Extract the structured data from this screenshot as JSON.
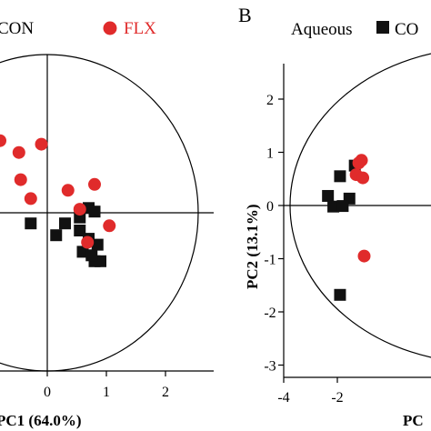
{
  "panels": [
    {
      "panel_label": "",
      "legend": [
        {
          "label": "CON",
          "marker": "square",
          "color": "#111111"
        },
        {
          "label": "FLX",
          "marker": "circle",
          "color": "#e02b2b"
        }
      ],
      "chart_data": {
        "type": "scatter",
        "xlabel": "PC1 (64.0%)",
        "ylabel": "",
        "x_ticks": [
          0,
          1,
          2
        ],
        "y_ticks": [],
        "xlim": [
          -0.8,
          2.55
        ],
        "ylim": [
          -1.35,
          1.3
        ],
        "ellipse": {
          "center": [
            0,
            0
          ],
          "rx": 2.55,
          "ry": 1.32
        },
        "grid": false,
        "series": [
          {
            "name": "CON",
            "marker": "square",
            "color": "#111111",
            "points": [
              [
                -0.28,
                -0.09
              ],
              [
                0.15,
                -0.19
              ],
              [
                0.3,
                -0.09
              ],
              [
                0.55,
                -0.04
              ],
              [
                0.55,
                -0.15
              ],
              [
                0.7,
                0.04
              ],
              [
                0.8,
                0.01
              ],
              [
                0.7,
                -0.22
              ],
              [
                0.6,
                -0.33
              ],
              [
                0.85,
                -0.27
              ],
              [
                0.8,
                -0.41
              ],
              [
                0.9,
                -0.41
              ],
              [
                0.75,
                -0.36
              ]
            ]
          },
          {
            "name": "FLX",
            "marker": "circle",
            "color": "#e02b2b",
            "points": [
              [
                -0.8,
                0.61
              ],
              [
                -0.1,
                0.58
              ],
              [
                -0.48,
                0.51
              ],
              [
                -0.45,
                0.28
              ],
              [
                -0.28,
                0.12
              ],
              [
                0.35,
                0.19
              ],
              [
                0.8,
                0.24
              ],
              [
                0.55,
                0.03
              ],
              [
                1.05,
                -0.11
              ],
              [
                0.68,
                -0.25
              ]
            ]
          }
        ]
      }
    },
    {
      "panel_label": "B",
      "legend": [
        {
          "label": "Aqueous",
          "marker": "none",
          "color": "#000000"
        },
        {
          "label": "CO",
          "marker": "square",
          "color": "#111111"
        }
      ],
      "chart_data": {
        "type": "scatter",
        "xlabel": "PC",
        "ylabel": "PC2 (13.1%)",
        "x_ticks": [
          -4,
          -2
        ],
        "y_ticks": [
          -3,
          -2,
          -1,
          0,
          1,
          2
        ],
        "xlim": [
          -5.4,
          0
        ],
        "ylim": [
          -3.25,
          2.9
        ],
        "ellipse": {
          "center": [
            0,
            0
          ],
          "rx": 5.05,
          "ry": 2.92
        },
        "grid": false,
        "series": [
          {
            "name": "CO",
            "marker": "square",
            "color": "#111111",
            "points": [
              [
                -1.9,
                0.55
              ],
              [
                -1.35,
                0.75
              ],
              [
                -2.35,
                0.18
              ],
              [
                -1.55,
                0.13
              ],
              [
                -2.15,
                -0.02
              ],
              [
                -1.8,
                -0.01
              ],
              [
                -1.9,
                -1.68
              ]
            ]
          },
          {
            "name": "",
            "marker": "circle",
            "color": "#e02b2b",
            "points": [
              [
                -1.1,
                0.85
              ],
              [
                -1.3,
                0.58
              ],
              [
                -1.05,
                0.52
              ],
              [
                -1.2,
                0.8
              ],
              [
                -1.0,
                -0.95
              ]
            ]
          }
        ]
      }
    }
  ]
}
